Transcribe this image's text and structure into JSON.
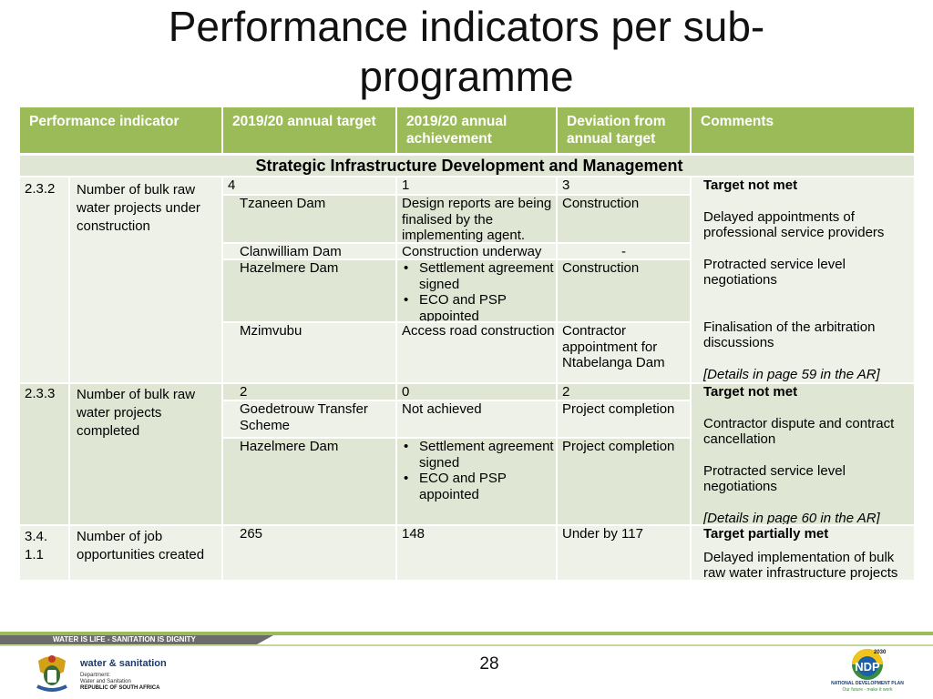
{
  "title": "Performance indicators per sub-\nprogramme",
  "headers": [
    "Performance indicator",
    "2019/20 annual target",
    "2019/20 annual achievement",
    "Deviation from annual target",
    "Comments"
  ],
  "section": "Strategic Infrastructure Development and Management",
  "rows": [
    {
      "id": "2.3.2",
      "indicator": "Number of bulk raw water projects under construction",
      "target": "4",
      "achievement": "1",
      "deviation": "3",
      "sub": [
        {
          "target": "Tzaneen Dam",
          "achievement": "Design reports are being finalised by the implementing agent.",
          "deviation": "Construction"
        },
        {
          "target": "Clanwilliam Dam",
          "achievement": "Construction underway",
          "deviation": "-"
        },
        {
          "target": "Hazelmere Dam",
          "achievement_bullets": [
            "Settlement agreement signed",
            "ECO and PSP appointed"
          ],
          "deviation": "Construction"
        },
        {
          "target": "Mzimvubu",
          "achievement": "Access road construction",
          "deviation": "Contractor appointment for Ntabelanga Dam"
        }
      ],
      "comments": {
        "status": "Target not  met",
        "reasons": [
          "Delayed appointments of professional service providers",
          "Protracted service level negotiations",
          "Finalisation of the arbitration discussions"
        ],
        "ref": "[Details in page 59 in the AR]"
      }
    },
    {
      "id": "2.3.3",
      "indicator": "Number of bulk raw water projects completed",
      "target": "2",
      "achievement": "0",
      "deviation": "2",
      "sub": [
        {
          "target": "Goedetrouw Transfer Scheme",
          "achievement": "Not achieved",
          "deviation": "Project completion"
        },
        {
          "target": "Hazelmere Dam",
          "achievement_bullets": [
            "Settlement agreement signed",
            "ECO and PSP appointed"
          ],
          "deviation": "Project completion"
        }
      ],
      "comments": {
        "status": "Target not  met",
        "reasons": [
          "Contractor dispute and contract cancellation",
          "Protracted service level negotiations"
        ],
        "ref": "[Details in page 60 in the AR]"
      }
    },
    {
      "id": "3.4.\n1.1",
      "indicator": "Number of job opportunities created",
      "target": "265",
      "achievement": "148",
      "deviation": "Under by 117",
      "comments": {
        "status": "Target partially met",
        "reasons": [
          "Delayed implementation of bulk raw water infrastructure projects"
        ]
      }
    }
  ],
  "footer": {
    "slogan": "WATER IS LIFE - SANITATION IS DIGNITY",
    "page_number": "28",
    "dept_name": "water & sanitation",
    "dept_lines": [
      "Department:",
      "Water and Sanitation",
      "REPUBLIC OF SOUTH AFRICA"
    ],
    "ndp_logo_text": "NATIONAL DEVELOPMENT PLAN",
    "ndp_tagline": "Our future - make it work",
    "ndp_year": "2030",
    "ndp_abbr": "NDP"
  },
  "colors": {
    "header_bg": "#9bbb59",
    "row_light": "#eef1e8",
    "row_dark": "#dfe6d4"
  }
}
